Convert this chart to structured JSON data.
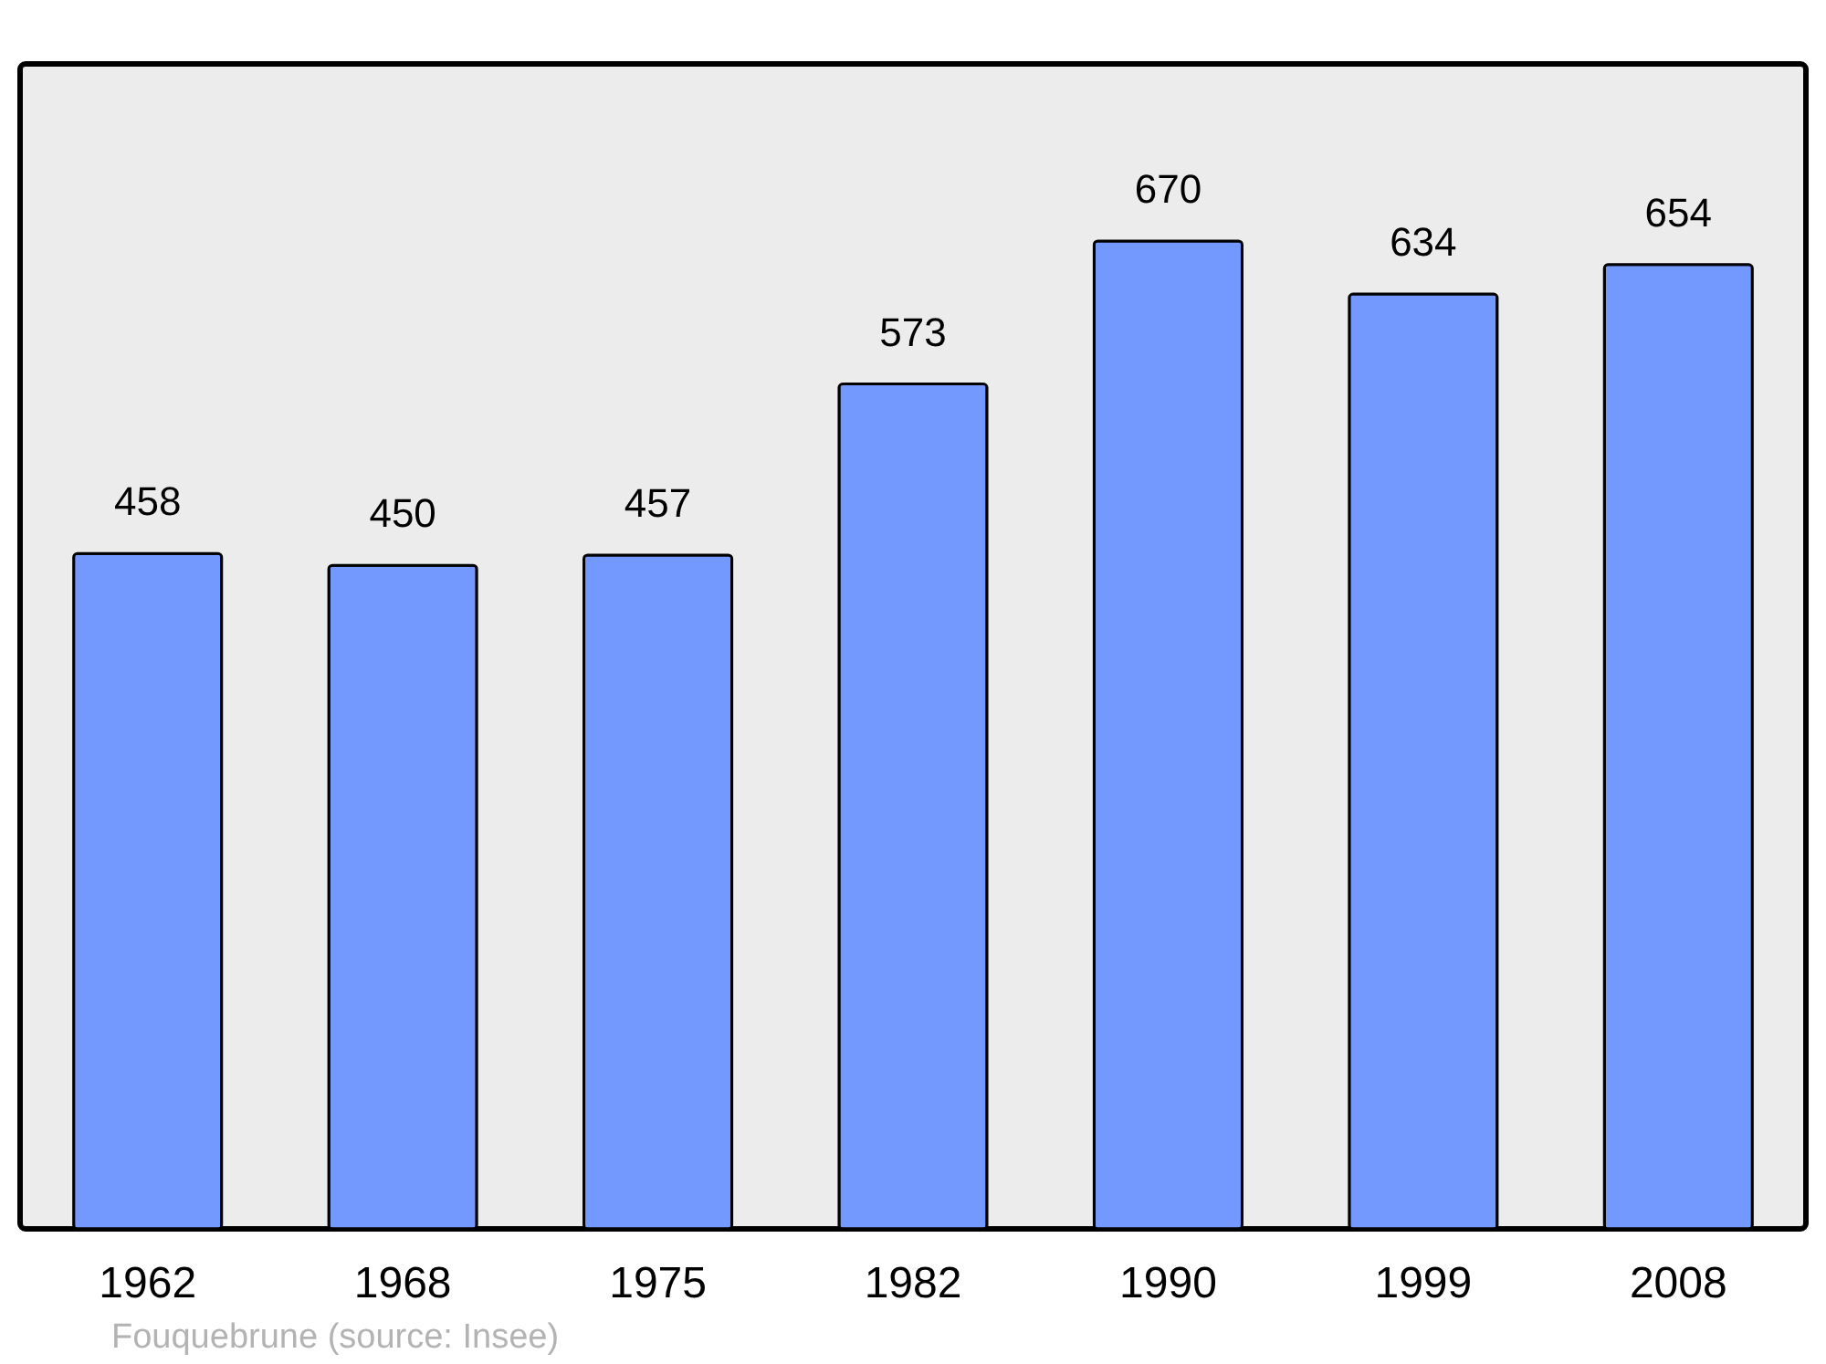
{
  "chart_data": {
    "type": "bar",
    "categories": [
      "1962",
      "1968",
      "1975",
      "1982",
      "1990",
      "1999",
      "2008"
    ],
    "values": [
      458,
      450,
      457,
      573,
      670,
      634,
      654
    ],
    "color": "#7399ff",
    "data_labels": true,
    "grid": false,
    "annotations": [
      "Fouquebrune    (source: Insee)"
    ]
  }
}
